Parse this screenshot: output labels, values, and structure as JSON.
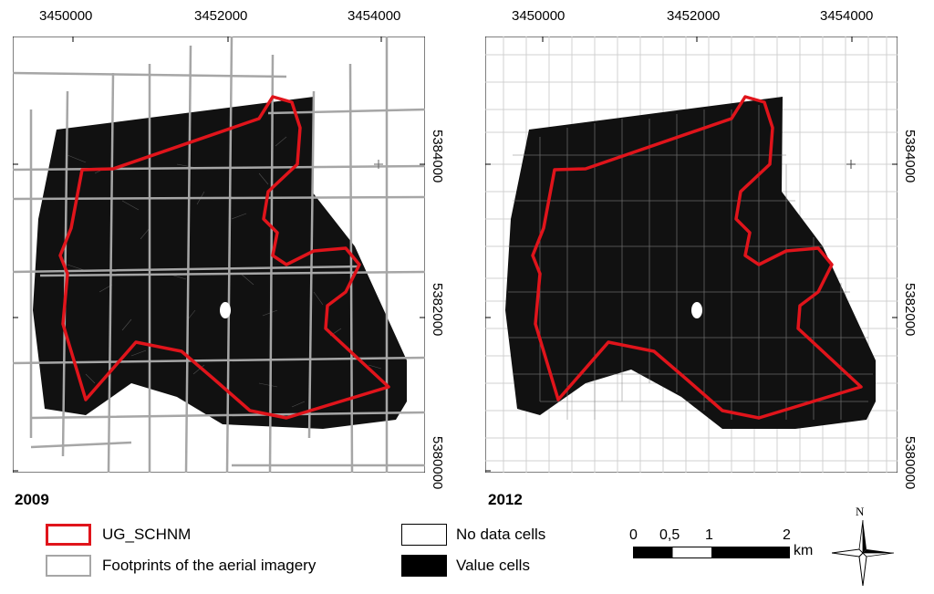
{
  "maps": [
    {
      "year": "2009",
      "x_ticks": [
        "3450000",
        "3452000",
        "3454000"
      ],
      "y_ticks": [
        "5384000",
        "5382000",
        "5380000"
      ]
    },
    {
      "year": "2012",
      "x_ticks": [
        "3450000",
        "3452000",
        "3454000"
      ],
      "y_ticks": [
        "5384000",
        "5382000",
        "5380000"
      ]
    }
  ],
  "legend": {
    "boundary": "UG_SCHNM",
    "footprints": "Footprints of the aerial imagery",
    "no_data": "No data cells",
    "value": "Value cells"
  },
  "scale_bar": {
    "labels": [
      "0",
      "0,5",
      "1",
      "2"
    ],
    "unit": "km"
  },
  "north_arrow": {
    "label": "N"
  },
  "colors": {
    "boundary": "#e0141b",
    "footprints": "#a6a6a6",
    "value_cells": "#000000",
    "no_data_cells": "#ffffff"
  }
}
